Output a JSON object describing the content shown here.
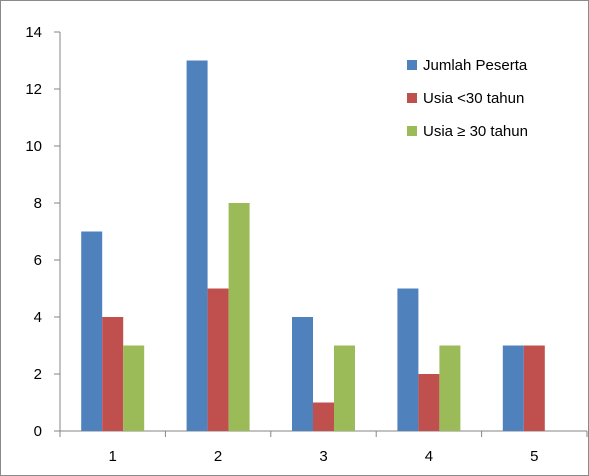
{
  "chart_data": {
    "type": "bar",
    "title": "",
    "xlabel": "",
    "ylabel": "",
    "categories": [
      "1",
      "2",
      "3",
      "4",
      "5"
    ],
    "series": [
      {
        "name": "Jumlah Peserta",
        "color": "#4F81BD",
        "values": [
          7,
          13,
          4,
          5,
          3
        ]
      },
      {
        "name": "Usia <30 tahun",
        "color": "#C0504D",
        "values": [
          4,
          5,
          1,
          2,
          3
        ]
      },
      {
        "name": "Usia ≥ 30 tahun",
        "color": "#9BBB59",
        "values": [
          3,
          8,
          3,
          3,
          0
        ]
      }
    ],
    "ylim": [
      0,
      14
    ],
    "yticks": [
      "0",
      "2",
      "4",
      "6",
      "8",
      "10",
      "12",
      "14"
    ],
    "grid": false,
    "legend_position": "top-right"
  }
}
